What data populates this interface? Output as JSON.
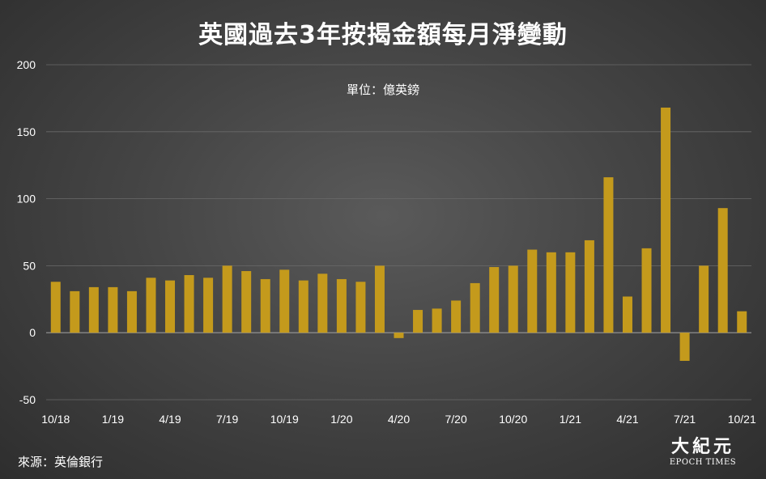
{
  "header": {
    "title": "英國過去3年按揭金額每月淨變動",
    "unit": "單位：億英鎊"
  },
  "footer": {
    "source": "來源：英倫銀行",
    "logo_cn": "大紀元",
    "logo_en": "EPOCH TIMES"
  },
  "colors": {
    "bar": "#c49a1c",
    "grid": "#6a6a6a",
    "axis_text": "#ffffff"
  },
  "chart_data": {
    "type": "bar",
    "title": "英國過去3年按揭金額每月淨變動",
    "subtitle": "單位：億英鎊",
    "ylim": [
      -50,
      200
    ],
    "yticks": [
      -50,
      0,
      50,
      100,
      150,
      200
    ],
    "grid": true,
    "categories": [
      "10/18",
      "11/18",
      "12/18",
      "1/19",
      "2/19",
      "3/19",
      "4/19",
      "5/19",
      "6/19",
      "7/19",
      "8/19",
      "9/19",
      "10/19",
      "11/19",
      "12/19",
      "1/20",
      "2/20",
      "3/20",
      "4/20",
      "5/20",
      "6/20",
      "7/20",
      "8/20",
      "9/20",
      "10/20",
      "11/20",
      "12/20",
      "1/21",
      "2/21",
      "3/21",
      "4/21",
      "5/21",
      "6/21",
      "7/21",
      "8/21",
      "9/21",
      "10/21"
    ],
    "xtick_labels": [
      "10/18",
      "1/19",
      "4/19",
      "7/19",
      "10/19",
      "1/20",
      "4/20",
      "7/20",
      "10/20",
      "1/21",
      "4/21",
      "7/21",
      "10/21"
    ],
    "values": [
      38,
      31,
      34,
      34,
      31,
      41,
      39,
      43,
      41,
      50,
      46,
      40,
      47,
      39,
      44,
      40,
      38,
      50,
      -4,
      17,
      18,
      24,
      37,
      49,
      50,
      62,
      60,
      60,
      69,
      116,
      27,
      63,
      168,
      -21,
      50,
      93,
      16
    ]
  }
}
